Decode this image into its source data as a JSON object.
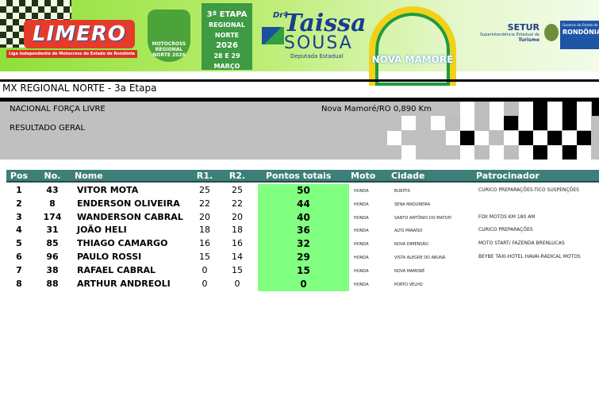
{
  "banner": {
    "limero": "LIMERO",
    "limero_sub": "Liga Independente de Motocross do Estado de Rondônia",
    "badge": "MOTOCROSS REGIONAL NORTE 2026",
    "etapa": [
      "3ª ETAPA",
      "REGIONAL NORTE",
      "2026",
      "28 E 29 MARÇO",
      "NOVA MAMORÉ"
    ],
    "dra": "Drª",
    "taissa": "Taissa",
    "sousa": "SOUSA",
    "deputada": "Deputada Estadual",
    "nova_mamore": "NOVA MAMORÉ",
    "setur": "SETUR",
    "setur_sub": "Superintendência Estadual de",
    "turismo": "Turismo",
    "gov": "Governo do Estado de",
    "rondonia": "RONDÔNIA"
  },
  "title": "MX REGIONAL NORTE - 3a Etapa",
  "info": {
    "category": "NACIONAL FORÇA LIVRE",
    "result": "RESULTADO GERAL",
    "location": "Nova Mamoré/RO 0,890 Km"
  },
  "table": {
    "headers": {
      "pos": "Pos",
      "no": "No.",
      "nome": "Nome",
      "r1": "R1.",
      "r2": "R2.",
      "pontos": "Pontos totais",
      "moto": "Moto",
      "cidade": "Cidade",
      "patrocinador": "Patrocinador"
    },
    "rows": [
      {
        "pos": "1",
        "no": "43",
        "nome": "VITOR MOTA",
        "r1": "25",
        "r2": "25",
        "pontos": "50",
        "moto": "HONDA",
        "cidade": "BURITIS",
        "patrocinador": "CURICO PREPARAÇÕES-TICO SUSPENÇÕES"
      },
      {
        "pos": "2",
        "no": "8",
        "nome": "ENDERSON OLIVEIRA",
        "r1": "22",
        "r2": "22",
        "pontos": "44",
        "moto": "HONDA",
        "cidade": "SENA MADUREIRA",
        "patrocinador": ""
      },
      {
        "pos": "3",
        "no": "174",
        "nome": "WANDERSON CABRAL",
        "r1": "20",
        "r2": "20",
        "pontos": "40",
        "moto": "HONDA",
        "cidade": "SANTO ANTÔNIO DO MATUPI",
        "patrocinador": "FOX MOTOS KM 180 AM"
      },
      {
        "pos": "4",
        "no": "31",
        "nome": "JOÃO HELI",
        "r1": "18",
        "r2": "18",
        "pontos": "36",
        "moto": "HONDA",
        "cidade": "ALTO PARAÍSO",
        "patrocinador": "CURICO PREPARAÇÕES"
      },
      {
        "pos": "5",
        "no": "85",
        "nome": "THIAGO CAMARGO",
        "r1": "16",
        "r2": "16",
        "pontos": "32",
        "moto": "HONDA",
        "cidade": "NOVA DIMENSÃO",
        "patrocinador": "MOTO START/ FAZENDA BRENLUCAS"
      },
      {
        "pos": "6",
        "no": "96",
        "nome": "PAULO ROSSI",
        "r1": "15",
        "r2": "14",
        "pontos": "29",
        "moto": "HONDA",
        "cidade": "VISTA ALEGRE DO ABUNÃ",
        "patrocinador": "BEYBE TÁXI-HOTEL HAVAI-RADICAL MOTOS"
      },
      {
        "pos": "7",
        "no": "38",
        "nome": "RAFAEL CABRAL",
        "r1": "0",
        "r2": "15",
        "pontos": "15",
        "moto": "HONDA",
        "cidade": "NOVA MAMORÉ",
        "patrocinador": ""
      },
      {
        "pos": "8",
        "no": "88",
        "nome": "ARTHUR ANDREOLI",
        "r1": "0",
        "r2": "0",
        "pontos": "0",
        "moto": "HONDA",
        "cidade": "PORTO VELHO",
        "patrocinador": ""
      }
    ]
  },
  "colors": {
    "header_bg": "#3f7f7a",
    "points_bg": "#80ff80",
    "info_bg": "#c0c0c0"
  }
}
